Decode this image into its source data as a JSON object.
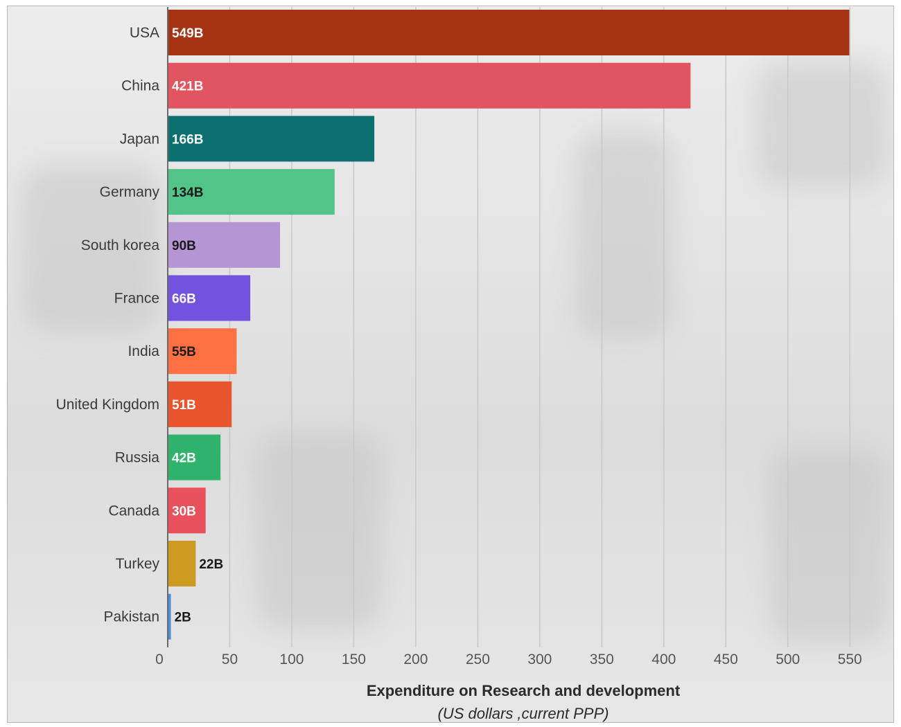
{
  "chart_data": {
    "type": "bar",
    "orientation": "horizontal",
    "title": "",
    "xlabel": "Expenditure on Research and development",
    "xlabel_sub": "(US dollars ,current PPP)",
    "ylabel": "",
    "xlim": [
      0,
      570
    ],
    "xticks": [
      0,
      50,
      100,
      150,
      200,
      250,
      300,
      350,
      400,
      450,
      500,
      550
    ],
    "grid": "vertical",
    "legend": "none",
    "categories": [
      "USA",
      "China",
      "Japan",
      "Germany",
      "South korea",
      "France",
      "India",
      "United Kingdom",
      "Russia",
      "Canada",
      "Turkey",
      "Pakistan"
    ],
    "values": [
      549,
      421,
      166,
      134,
      90,
      66,
      55,
      51,
      42,
      30,
      22,
      2
    ],
    "value_labels": [
      "549B",
      "421B",
      "166B",
      "134B",
      "90B",
      "66B",
      "55B",
      "51B",
      "42B",
      "30B",
      "22B",
      "2B"
    ],
    "colors": [
      "#a63314",
      "#e05560",
      "#0c7070",
      "#52c487",
      "#b595d4",
      "#7352e0",
      "#ff7043",
      "#e8542c",
      "#2fb36a",
      "#e8505c",
      "#cc9a1e",
      "#4a90d9"
    ],
    "label_colors": [
      "#ffffff",
      "#ffffff",
      "#ffffff",
      "#1a1a1a",
      "#1a1a1a",
      "#ffffff",
      "#1a1a1a",
      "#ffffff",
      "#ffffff",
      "#ffffff",
      "#1a1a1a",
      "#1a1a1a"
    ],
    "label_inside": [
      true,
      true,
      true,
      true,
      true,
      true,
      true,
      true,
      true,
      true,
      false,
      false
    ]
  }
}
